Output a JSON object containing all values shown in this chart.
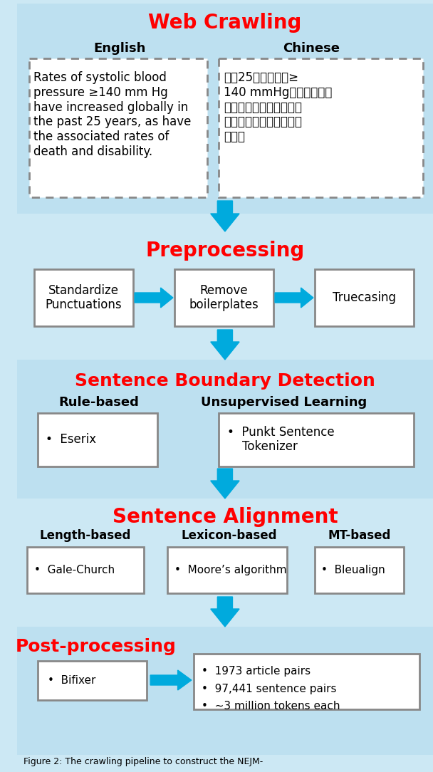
{
  "bg_color": "#cce8f4",
  "section_bg_light": "#d8eef8",
  "section_bg_lighter": "#e0f2fc",
  "red_color": "#ff0000",
  "blue_arrow_color": "#00aadd",
  "box_border_color": "#888888",
  "white_box_color": "#ffffff",
  "dashed_box_color": "#aaaaaa",
  "title_fontsize": 18,
  "subtitle_fontsize": 13,
  "body_fontsize": 11,
  "small_fontsize": 10,
  "section1_title": "Web Crawling",
  "section1_col1_header": "English",
  "section1_col2_header": "Chinese",
  "section1_col1_text": "Rates of systolic blood\npressure ≥140 mm Hg\nhave increased globally in\nthe past 25 years, as have\nthe associated rates of\ndeath and disability.",
  "section1_col2_text": "过去25年间收缩压≥\n140 mmHg的比例在全球\n范围内有所上升，相关的\n死亡率和失能比例也有所\n上升。",
  "section2_title": "Preprocessing",
  "section2_boxes": [
    "Standardize\nPunctuations",
    "Remove\nboilerplates",
    "Truecasing"
  ],
  "section3_title": "Sentence Boundary Detection",
  "section3_col1_header": "Rule-based",
  "section3_col2_header": "Unsupervised Learning",
  "section3_col1_text": "•  Eserix",
  "section3_col2_text": "•  Punkt Sentence\n    Tokenizer",
  "section4_title": "Sentence Alignment",
  "section4_col1_header": "Length-based",
  "section4_col2_header": "Lexicon-based",
  "section4_col3_header": "MT-based",
  "section4_col1_text": "•  Gale-Church",
  "section4_col2_text": "•  Moore’s algorithm",
  "section4_col3_text": "•  Bleualign",
  "section5_title": "Post-processing",
  "section5_left_text": "•  Bifixer",
  "section5_right_text": "•  1973 article pairs\n•  97,441 sentence pairs\n•  ~3 million tokens each",
  "footer_text": "Figure 2: The crawling pipeline to construct the NEJM-"
}
